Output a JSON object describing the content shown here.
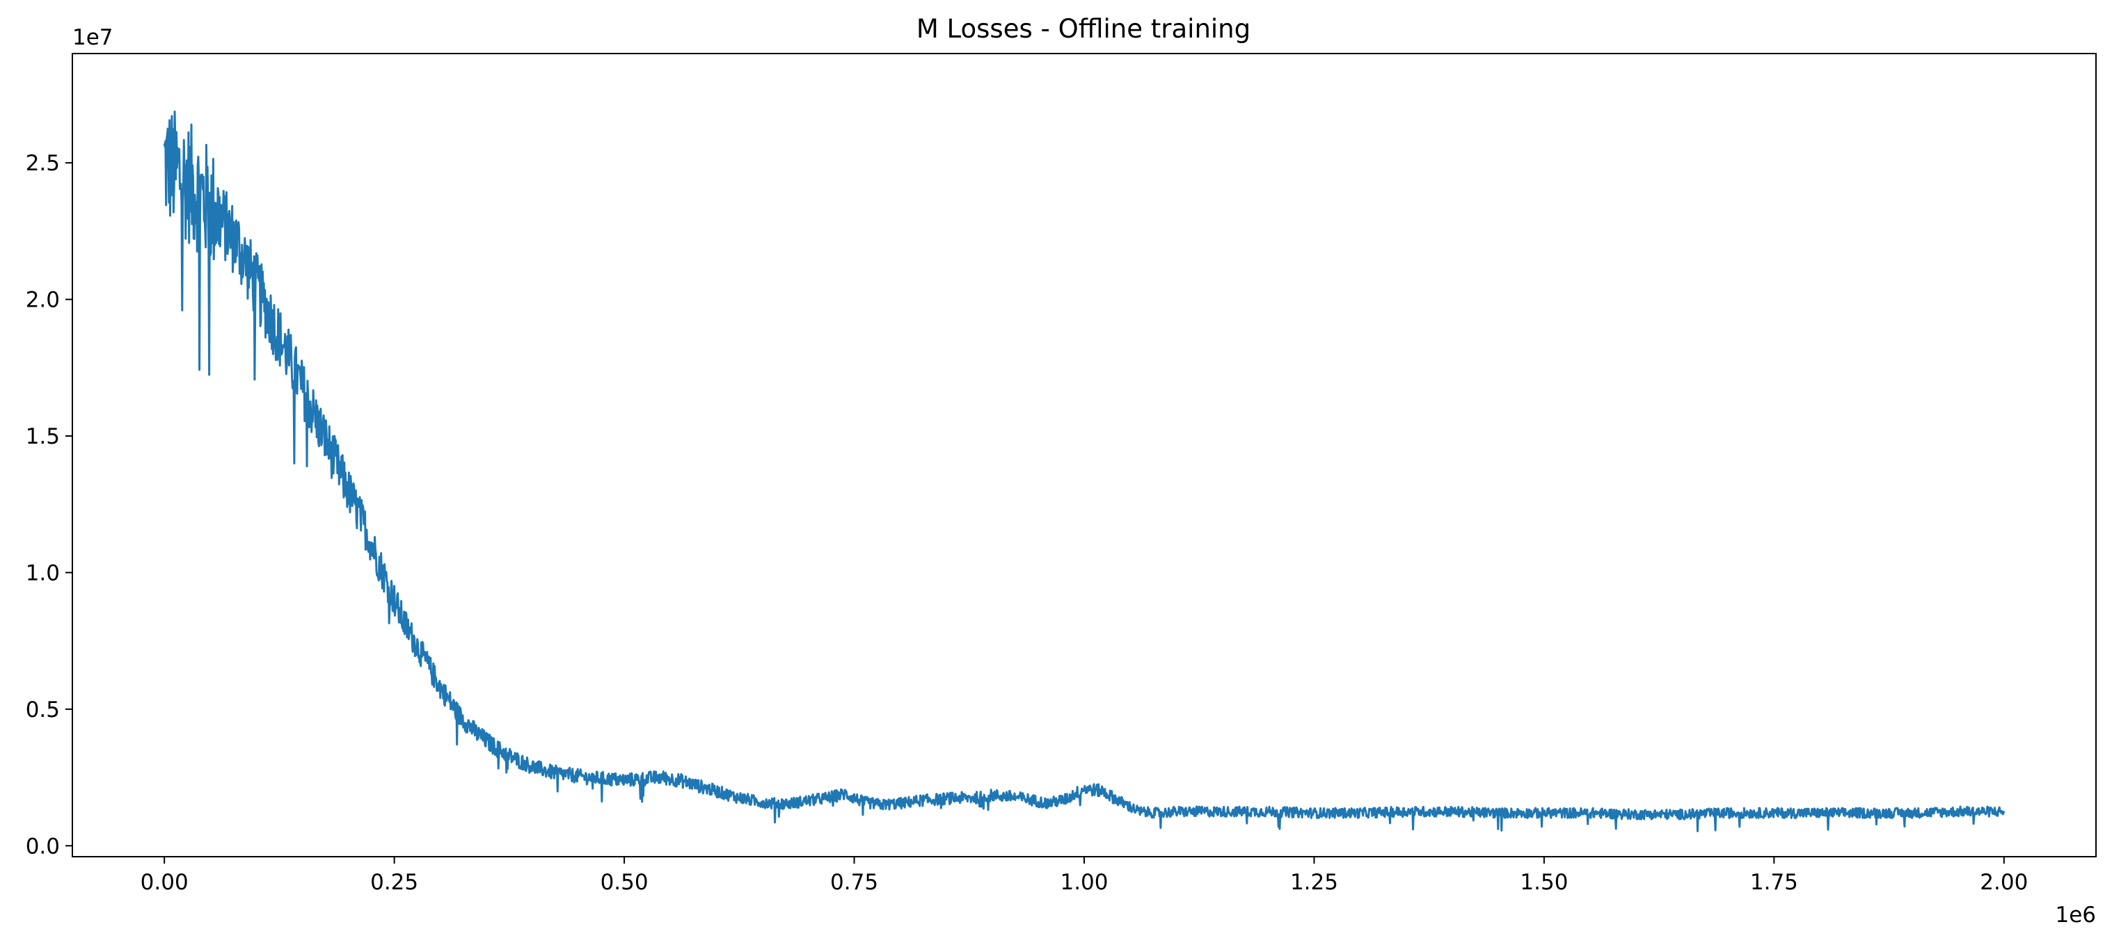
{
  "chart_data": {
    "type": "line",
    "title": "M Losses - Offline training",
    "xlabel": "",
    "ylabel": "",
    "x_offset_label": "1e6",
    "y_offset_label": "1e7",
    "xlim": [
      -0.1,
      2.1
    ],
    "ylim": [
      -0.04,
      2.9
    ],
    "x_scale_factor": 1000000,
    "y_scale_factor": 10000000,
    "xticks": [
      0.0,
      0.25,
      0.5,
      0.75,
      1.0,
      1.25,
      1.5,
      1.75,
      2.0
    ],
    "xtick_labels": [
      "0.00",
      "0.25",
      "0.50",
      "0.75",
      "1.00",
      "1.25",
      "1.50",
      "1.75",
      "2.00"
    ],
    "yticks": [
      0.0,
      0.5,
      1.0,
      1.5,
      2.0,
      2.5
    ],
    "ytick_labels": [
      "0.0",
      "0.5",
      "1.0",
      "1.5",
      "2.0",
      "2.5"
    ],
    "grid": false,
    "legend": "none",
    "colors": {
      "line": "#1f77b4",
      "axes": "#000000",
      "background": "#ffffff"
    },
    "series": [
      {
        "x": [
          0.0,
          0.02,
          0.04,
          0.06,
          0.08,
          0.1,
          0.12,
          0.14,
          0.16,
          0.18,
          0.2,
          0.22,
          0.24,
          0.26,
          0.28,
          0.3,
          0.32,
          0.34,
          0.36,
          0.38,
          0.4,
          0.42,
          0.44,
          0.46,
          0.48,
          0.5,
          0.52,
          0.54,
          0.56,
          0.58,
          0.6,
          0.62,
          0.64,
          0.66,
          0.68,
          0.7,
          0.72,
          0.74,
          0.76,
          0.78,
          0.8,
          0.82,
          0.84,
          0.86,
          0.88,
          0.9,
          0.92,
          0.94,
          0.96,
          0.98,
          1.0,
          1.02,
          1.04,
          1.06,
          1.08,
          1.1,
          1.15,
          1.2,
          1.25,
          1.3,
          1.35,
          1.4,
          1.45,
          1.5,
          1.55,
          1.6,
          1.65,
          1.7,
          1.75,
          1.8,
          1.85,
          1.9,
          1.95,
          2.0
        ],
        "y": [
          2.5,
          2.45,
          2.38,
          2.3,
          2.2,
          2.05,
          1.9,
          1.75,
          1.6,
          1.45,
          1.3,
          1.15,
          0.98,
          0.82,
          0.7,
          0.58,
          0.48,
          0.41,
          0.36,
          0.32,
          0.29,
          0.27,
          0.26,
          0.25,
          0.245,
          0.24,
          0.245,
          0.25,
          0.24,
          0.22,
          0.2,
          0.18,
          0.165,
          0.155,
          0.155,
          0.165,
          0.175,
          0.19,
          0.16,
          0.15,
          0.155,
          0.165,
          0.17,
          0.175,
          0.175,
          0.185,
          0.18,
          0.17,
          0.155,
          0.17,
          0.21,
          0.2,
          0.16,
          0.125,
          0.12,
          0.125,
          0.125,
          0.125,
          0.12,
          0.12,
          0.125,
          0.125,
          0.12,
          0.12,
          0.12,
          0.115,
          0.115,
          0.12,
          0.12,
          0.12,
          0.12,
          0.12,
          0.125,
          0.125
        ]
      }
    ]
  }
}
